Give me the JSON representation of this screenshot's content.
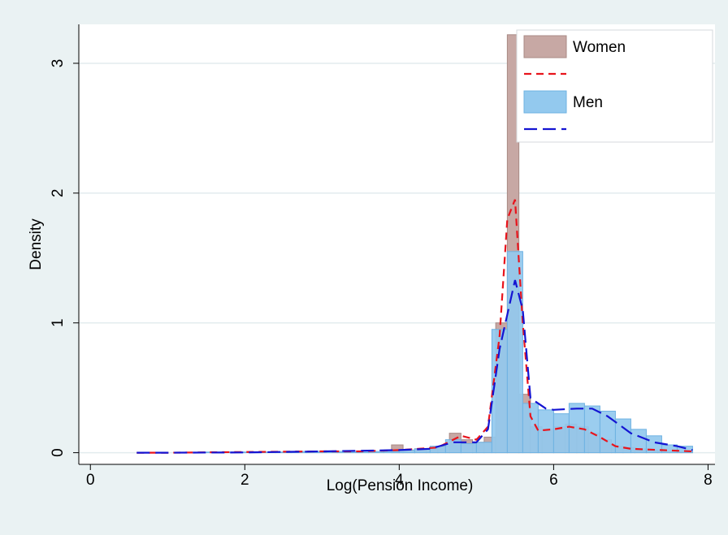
{
  "chart_data": {
    "type": "histogram",
    "xlabel": "Log(Pension Income)",
    "ylabel": "Density",
    "xlim": [
      -0.15,
      8.09
    ],
    "ylim": [
      -0.09,
      3.3
    ],
    "xticks": [
      0,
      2,
      4,
      6,
      8
    ],
    "yticks": [
      0,
      1,
      2,
      3
    ],
    "grid": true,
    "legend": "top-right",
    "series": [
      {
        "name": "Women",
        "color": "#c7a8a4",
        "edge": "#a88a85",
        "bins": [
          3.9,
          4.05,
          4.2,
          4.35,
          4.5,
          4.65,
          4.8,
          4.95,
          5.1,
          5.25,
          5.4,
          5.55,
          5.7,
          5.85,
          6.0,
          6.15,
          6.3,
          6.45,
          6.6,
          6.75,
          6.9,
          7.05,
          7.2,
          7.35,
          7.5,
          7.65,
          7.8
        ],
        "values": [
          0.06,
          0.02,
          0.03,
          0.03,
          0.05,
          0.15,
          0.1,
          0.08,
          0.12,
          1.0,
          3.22,
          0.45,
          0.2,
          0.18,
          0.2,
          0.22,
          0.2,
          0.15,
          0.1,
          0.05,
          0.04,
          0.03,
          0.02,
          0.01,
          0.01,
          0.01
        ],
        "density": {
          "color": "#e8141c",
          "dash": "9 6",
          "x": [
            0.6,
            1,
            2,
            3,
            3.5,
            4,
            4.5,
            4.8,
            5.0,
            5.15,
            5.3,
            5.4,
            5.5,
            5.6,
            5.7,
            5.8,
            6.0,
            6.2,
            6.4,
            6.6,
            6.8,
            7.0,
            7.4,
            7.8
          ],
          "values": [
            0,
            0,
            0.005,
            0.01,
            0.01,
            0.02,
            0.04,
            0.13,
            0.1,
            0.2,
            0.9,
            1.8,
            1.95,
            1.0,
            0.28,
            0.17,
            0.18,
            0.2,
            0.18,
            0.12,
            0.05,
            0.03,
            0.02,
            0.01
          ]
        }
      },
      {
        "name": "Men",
        "color": "#93c9ee",
        "edge": "#6eb2e2",
        "bins": [
          1.4,
          1.6,
          1.8,
          2.0,
          2.2,
          2.4,
          2.6,
          2.8,
          3.0,
          3.2,
          3.4,
          3.6,
          3.8,
          4.0,
          4.2,
          4.4,
          4.6,
          4.8,
          5.0,
          5.2,
          5.4,
          5.6,
          5.8,
          6.0,
          6.2,
          6.4,
          6.6,
          6.8,
          7.0,
          7.2,
          7.4,
          7.6,
          7.8
        ],
        "values": [
          0.005,
          0.005,
          0.005,
          0.005,
          0.005,
          0.005,
          0.01,
          0.01,
          0.01,
          0.01,
          0.01,
          0.01,
          0.01,
          0.02,
          0.03,
          0.05,
          0.1,
          0.07,
          0.08,
          0.95,
          1.55,
          0.38,
          0.33,
          0.3,
          0.38,
          0.36,
          0.32,
          0.26,
          0.18,
          0.13,
          0.06,
          0.05
        ],
        "density": {
          "color": "#1414d2",
          "dash": "16 7",
          "x": [
            0.6,
            1,
            2,
            3,
            4,
            4.4,
            4.7,
            5.0,
            5.15,
            5.3,
            5.5,
            5.6,
            5.7,
            5.9,
            6.0,
            6.3,
            6.5,
            6.7,
            7.0,
            7.3,
            7.6,
            7.8
          ],
          "values": [
            0,
            0,
            0.002,
            0.01,
            0.02,
            0.03,
            0.08,
            0.08,
            0.18,
            0.8,
            1.33,
            1.1,
            0.42,
            0.34,
            0.33,
            0.34,
            0.34,
            0.28,
            0.15,
            0.08,
            0.05,
            0.02
          ]
        }
      }
    ]
  }
}
